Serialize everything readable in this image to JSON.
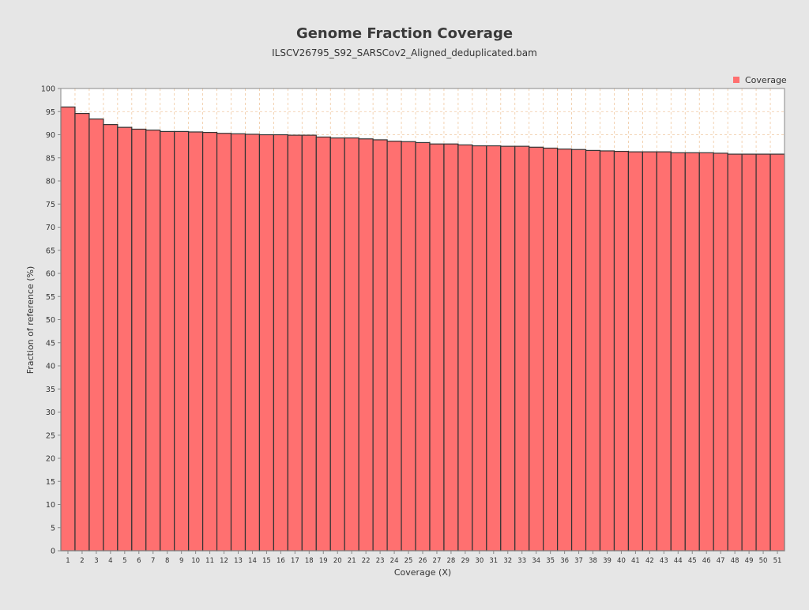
{
  "colors": {
    "background": "#e6e6e6",
    "plot_background": "#ffffff",
    "bar_fill": "#ff7070",
    "bar_stroke": "#333333",
    "grid": "#f0c8a0",
    "text": "#333333"
  },
  "chart_data": {
    "type": "bar",
    "title": "Genome Fraction Coverage",
    "subtitle": "ILSCV26795_S92_SARSCov2_Aligned_deduplicated.bam",
    "xlabel": "Coverage (X)",
    "ylabel": "Fraction of reference (%)",
    "ylim": [
      0,
      100
    ],
    "yticks": [
      0,
      5,
      10,
      15,
      20,
      25,
      30,
      35,
      40,
      45,
      50,
      55,
      60,
      65,
      70,
      75,
      80,
      85,
      90,
      95,
      100
    ],
    "grid": true,
    "legend_position": "top-right",
    "categories": [
      "1",
      "2",
      "3",
      "4",
      "5",
      "6",
      "7",
      "8",
      "9",
      "10",
      "11",
      "12",
      "13",
      "14",
      "15",
      "16",
      "17",
      "18",
      "19",
      "20",
      "21",
      "22",
      "23",
      "24",
      "25",
      "26",
      "27",
      "28",
      "29",
      "30",
      "31",
      "32",
      "33",
      "34",
      "35",
      "36",
      "37",
      "38",
      "39",
      "40",
      "41",
      "42",
      "43",
      "44",
      "45",
      "46",
      "47",
      "48",
      "49",
      "50",
      "51"
    ],
    "series": [
      {
        "name": "Coverage",
        "values": [
          96.0,
          94.6,
          93.4,
          92.2,
          91.6,
          91.2,
          91.0,
          90.7,
          90.7,
          90.6,
          90.5,
          90.3,
          90.2,
          90.1,
          90.0,
          90.0,
          89.9,
          89.9,
          89.5,
          89.3,
          89.3,
          89.1,
          88.9,
          88.6,
          88.5,
          88.3,
          88.0,
          88.0,
          87.8,
          87.6,
          87.6,
          87.5,
          87.5,
          87.3,
          87.1,
          86.9,
          86.8,
          86.6,
          86.5,
          86.4,
          86.3,
          86.3,
          86.3,
          86.1,
          86.1,
          86.1,
          86.0,
          85.8,
          85.8,
          85.8,
          85.8
        ]
      }
    ]
  }
}
